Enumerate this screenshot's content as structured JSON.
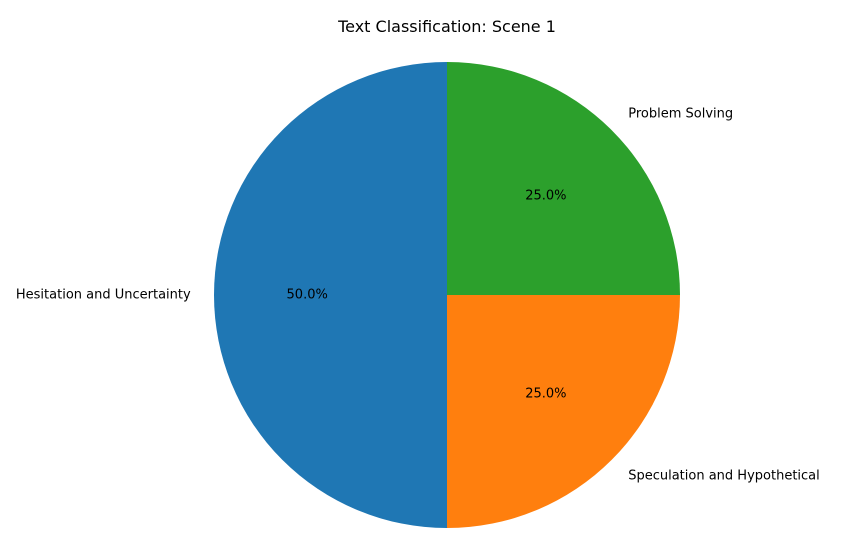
{
  "chart_data": {
    "type": "pie",
    "title": "Text Classification: Scene 1",
    "slices": [
      {
        "label": "Hesitation and Uncertainty",
        "value": 50.0,
        "pct_label": "50.0%",
        "color": "#1f77b4"
      },
      {
        "label": "Speculation and Hypothetical",
        "value": 25.0,
        "pct_label": "25.0%",
        "color": "#ff7f0e"
      },
      {
        "label": "Problem Solving",
        "value": 25.0,
        "pct_label": "25.0%",
        "color": "#2ca02c"
      }
    ],
    "start_angle": 90,
    "direction": "counterclockwise"
  }
}
